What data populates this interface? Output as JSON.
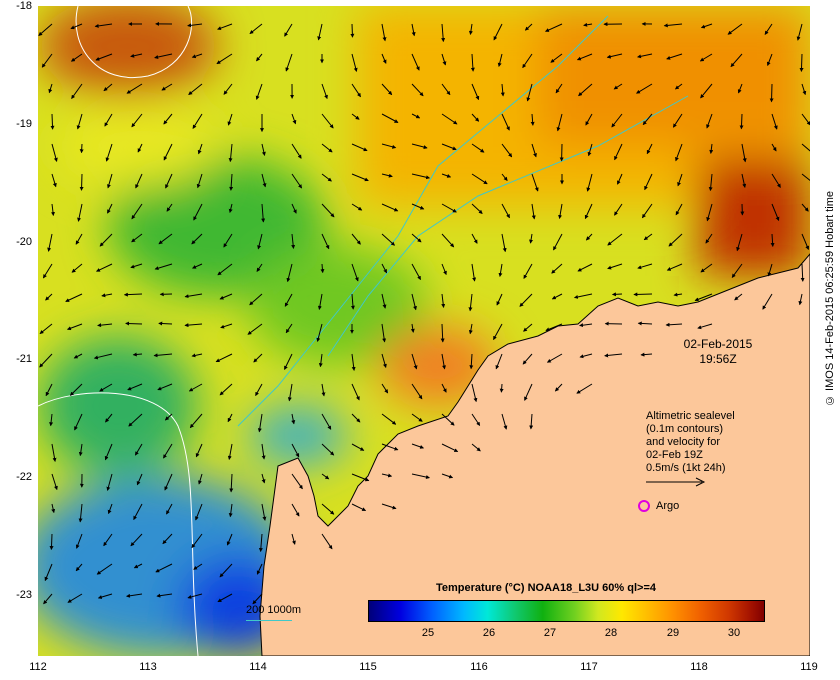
{
  "map": {
    "x_ticks": [
      "112",
      "113",
      "114",
      "115",
      "116",
      "117",
      "118",
      "119"
    ],
    "y_ticks": [
      "-18",
      "-19",
      "-20",
      "-21",
      "-22",
      "-23"
    ],
    "x_range": [
      112,
      119
    ],
    "y_range": [
      -23.5,
      -18
    ],
    "land_color": "#fcc79a",
    "date": "02-Feb-2015",
    "time": "19:56Z"
  },
  "legend": {
    "altimetry_lines": [
      "Altimetric sealevel",
      "(0.1m contours)",
      "and velocity for",
      "02-Feb 19Z",
      "0.5m/s (1kt 24h)"
    ],
    "argo_label": "Argo",
    "argo_color": "#e000e0",
    "depth_label": "200  1000m",
    "depth_color": "#40c8c8"
  },
  "colorbar": {
    "title": "Temperature (°C) NOAA18_L3U 60% ql>=4",
    "ticks": [
      "25",
      "26",
      "27",
      "28",
      "29",
      "30"
    ]
  },
  "credit": "© IMOS 14-Feb-2015 06:25:59 Hobart time"
}
